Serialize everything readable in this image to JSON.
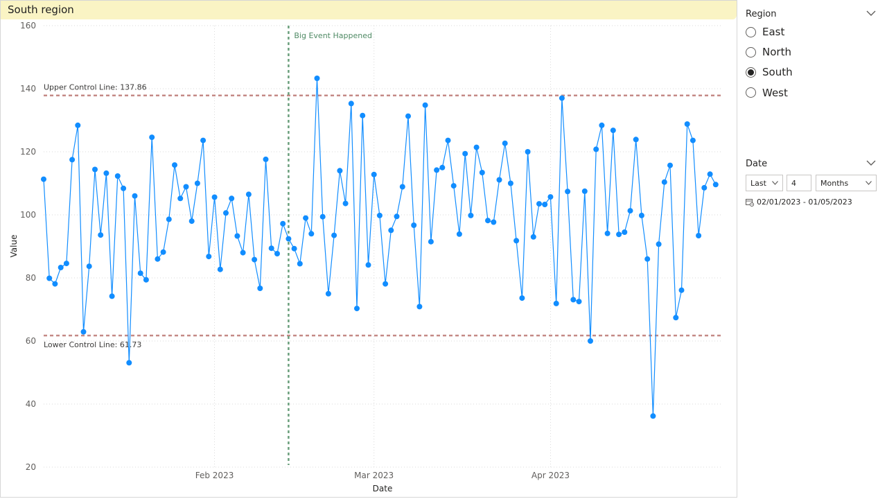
{
  "visual": {
    "title": "South region",
    "header_color": "#faf4c4"
  },
  "slicers": {
    "region": {
      "title": "Region",
      "options": [
        "East",
        "North",
        "South",
        "West"
      ],
      "selected": "South"
    },
    "date": {
      "title": "Date",
      "mode": "Last",
      "count": "4",
      "unit": "Months",
      "range": "02/01/2023 - 01/05/2023",
      "icon": "calendar-icon"
    }
  },
  "chart_data": {
    "type": "line",
    "title": "",
    "xlabel": "Date",
    "ylabel": "Value",
    "ylim": [
      20,
      160
    ],
    "yticks": [
      20,
      40,
      60,
      80,
      100,
      120,
      140,
      160
    ],
    "xlim": [
      "2023-01-02",
      "2023-05-01"
    ],
    "xticks": [
      {
        "label": "Feb 2023",
        "date": "2023-02-01"
      },
      {
        "label": "Mar 2023",
        "date": "2023-03-01"
      },
      {
        "label": "Apr 2023",
        "date": "2023-04-01"
      }
    ],
    "grid": true,
    "series_color": "#118dff",
    "series": [
      {
        "name": "",
        "start_date": "2023-01-02",
        "values": [
          111.3,
          79.9,
          78.1,
          83.3,
          84.6,
          117.5,
          128.4,
          62.9,
          83.7,
          114.4,
          93.6,
          113.2,
          74.2,
          112.3,
          108.4,
          53.1,
          106,
          81.5,
          79.4,
          124.6,
          86,
          88.2,
          98.6,
          115.8,
          105.2,
          108.9,
          98,
          110,
          123.6,
          86.8,
          105.6,
          82.7,
          100.6,
          105.2,
          93.3,
          88,
          106.5,
          85.8,
          76.7,
          117.6,
          89.4,
          87.7,
          97.2,
          92.4,
          89.3,
          84.5,
          99,
          94,
          143.3,
          99.4,
          75,
          93.5,
          114,
          103.6,
          135.3,
          70.3,
          131.5,
          84.1,
          112.8,
          99.8,
          78.1,
          95.1,
          99.5,
          108.9,
          131.3,
          96.7,
          70.9,
          134.8,
          91.5,
          114.2,
          115,
          123.6,
          109.2,
          93.9,
          119.4,
          99.8,
          121.4,
          113.4,
          98.2,
          97.7,
          111.1,
          122.7,
          110,
          91.8,
          73.6,
          120,
          93,
          103.5,
          103.3,
          105.7,
          71.9,
          137,
          107.4,
          73.1,
          72.5,
          107.5,
          60,
          120.8,
          128.4,
          94.1,
          126.8,
          93.8,
          94.5,
          101.3,
          123.9,
          99.8,
          86,
          36.2,
          90.7,
          110.4,
          115.7,
          67.4,
          76.1,
          128.8,
          123.6,
          93.4,
          108.6,
          112.9,
          109.6
        ]
      }
    ],
    "reference_lines": [
      {
        "label": "Upper Control Line: 137.86",
        "value": 137.86,
        "color": "#c48a86"
      },
      {
        "label": "Lower Control Line: 61.73",
        "value": 61.73,
        "color": "#c48a86"
      }
    ],
    "event_line": {
      "label": "Big Event Happened",
      "date": "2023-02-14",
      "color": "#6a9f7c"
    }
  }
}
